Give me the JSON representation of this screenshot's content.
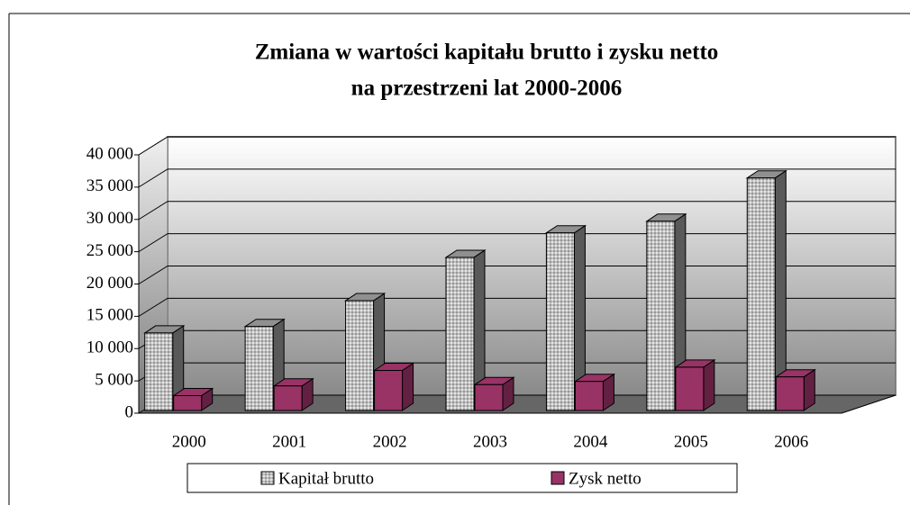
{
  "chart_data": {
    "type": "bar3d",
    "title": [
      "Zmiana w wartości kapitału brutto i zysku netto",
      "na przestrzeni lat 2000-2006"
    ],
    "categories": [
      "2000",
      "2001",
      "2002",
      "2003",
      "2004",
      "2005",
      "2006"
    ],
    "series": [
      {
        "name": "Kapitał brutto",
        "color": "#c0c0c0",
        "values": [
          12000,
          13000,
          17000,
          23700,
          27500,
          29300,
          36000
        ]
      },
      {
        "name": "Zysk netto",
        "color": "#993366",
        "values": [
          2300,
          3800,
          6200,
          4000,
          4500,
          6700,
          5200
        ]
      }
    ],
    "ylim": [
      0,
      40000
    ],
    "yticks": [
      0,
      {
        "value": 5000,
        "label": "5 000"
      },
      {
        "value": 10000,
        "label": "10 000"
      },
      {
        "value": 15000,
        "label": "15 000"
      },
      {
        "value": 20000,
        "label": "20 000"
      },
      {
        "value": 25000,
        "label": "25 000"
      },
      {
        "value": 30000,
        "label": "30 000"
      },
      {
        "value": 35000,
        "label": "35 000"
      },
      {
        "value": 40000,
        "label": "40 000"
      }
    ],
    "grid": true,
    "legend": "bottom"
  }
}
